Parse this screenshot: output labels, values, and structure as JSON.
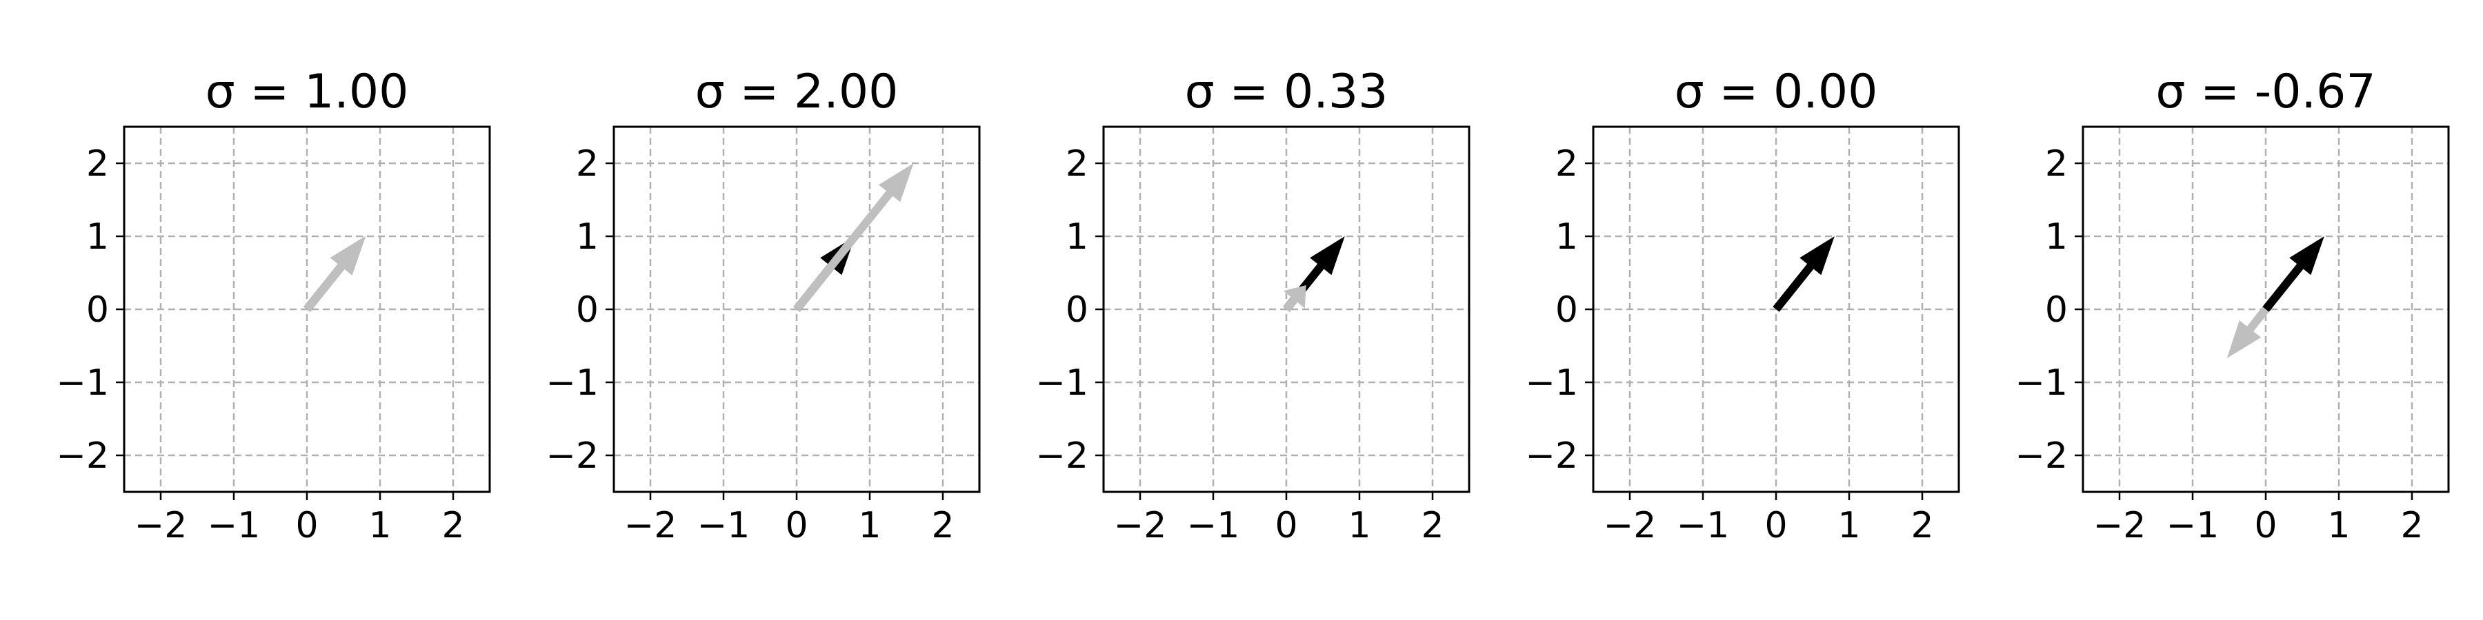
{
  "chart_data": [
    {
      "type": "quiver",
      "title": "σ = 1.00",
      "xlim": [
        -2.5,
        2.5
      ],
      "ylim": [
        -2.5,
        2.5
      ],
      "xticks": [
        -2,
        -1,
        0,
        1,
        2
      ],
      "yticks": [
        -2,
        -1,
        0,
        1,
        2
      ],
      "xtick_labels": [
        "−2",
        "−1",
        "0",
        "1",
        "2"
      ],
      "ytick_labels": [
        "−2",
        "−1",
        "0",
        "1",
        "2"
      ],
      "grid": true,
      "vectors": [
        {
          "role": "original",
          "x0": 0,
          "y0": 0,
          "dx": 0.8,
          "dy": 1.0
        },
        {
          "role": "scaled",
          "x0": 0,
          "y0": 0,
          "dx": 0.8,
          "dy": 1.0
        }
      ]
    },
    {
      "type": "quiver",
      "title": "σ = 2.00",
      "xlim": [
        -2.5,
        2.5
      ],
      "ylim": [
        -2.5,
        2.5
      ],
      "xticks": [
        -2,
        -1,
        0,
        1,
        2
      ],
      "yticks": [
        -2,
        -1,
        0,
        1,
        2
      ],
      "xtick_labels": [
        "−2",
        "−1",
        "0",
        "1",
        "2"
      ],
      "ytick_labels": [
        "−2",
        "−1",
        "0",
        "1",
        "2"
      ],
      "grid": true,
      "vectors": [
        {
          "role": "original",
          "x0": 0,
          "y0": 0,
          "dx": 0.8,
          "dy": 1.0
        },
        {
          "role": "scaled",
          "x0": 0,
          "y0": 0,
          "dx": 1.6,
          "dy": 2.0
        }
      ]
    },
    {
      "type": "quiver",
      "title": "σ = 0.33",
      "xlim": [
        -2.5,
        2.5
      ],
      "ylim": [
        -2.5,
        2.5
      ],
      "xticks": [
        -2,
        -1,
        0,
        1,
        2
      ],
      "yticks": [
        -2,
        -1,
        0,
        1,
        2
      ],
      "xtick_labels": [
        "−2",
        "−1",
        "0",
        "1",
        "2"
      ],
      "ytick_labels": [
        "−2",
        "−1",
        "0",
        "1",
        "2"
      ],
      "grid": true,
      "vectors": [
        {
          "role": "original",
          "x0": 0,
          "y0": 0,
          "dx": 0.8,
          "dy": 1.0
        },
        {
          "role": "scaled",
          "x0": 0,
          "y0": 0,
          "dx": 0.27,
          "dy": 0.33
        }
      ]
    },
    {
      "type": "quiver",
      "title": "σ = 0.00",
      "xlim": [
        -2.5,
        2.5
      ],
      "ylim": [
        -2.5,
        2.5
      ],
      "xticks": [
        -2,
        -1,
        0,
        1,
        2
      ],
      "yticks": [
        -2,
        -1,
        0,
        1,
        2
      ],
      "xtick_labels": [
        "−2",
        "−1",
        "0",
        "1",
        "2"
      ],
      "ytick_labels": [
        "−2",
        "−1",
        "0",
        "1",
        "2"
      ],
      "grid": true,
      "vectors": [
        {
          "role": "original",
          "x0": 0,
          "y0": 0,
          "dx": 0.8,
          "dy": 1.0
        },
        {
          "role": "scaled",
          "x0": 0,
          "y0": 0,
          "dx": 0.0,
          "dy": 0.0
        }
      ]
    },
    {
      "type": "quiver",
      "title": "σ = -0.67",
      "xlim": [
        -2.5,
        2.5
      ],
      "ylim": [
        -2.5,
        2.5
      ],
      "xticks": [
        -2,
        -1,
        0,
        1,
        2
      ],
      "yticks": [
        -2,
        -1,
        0,
        1,
        2
      ],
      "xtick_labels": [
        "−2",
        "−1",
        "0",
        "1",
        "2"
      ],
      "ytick_labels": [
        "−2",
        "−1",
        "0",
        "1",
        "2"
      ],
      "grid": true,
      "vectors": [
        {
          "role": "original",
          "x0": 0,
          "y0": 0,
          "dx": 0.8,
          "dy": 1.0
        },
        {
          "role": "scaled",
          "x0": 0,
          "y0": 0,
          "dx": -0.53,
          "dy": -0.67
        }
      ]
    }
  ],
  "colors": {
    "original": "#000000",
    "scaled": "#bfbfbf",
    "grid": "#b0b0b0",
    "axes": "#000000",
    "background": "#ffffff"
  }
}
